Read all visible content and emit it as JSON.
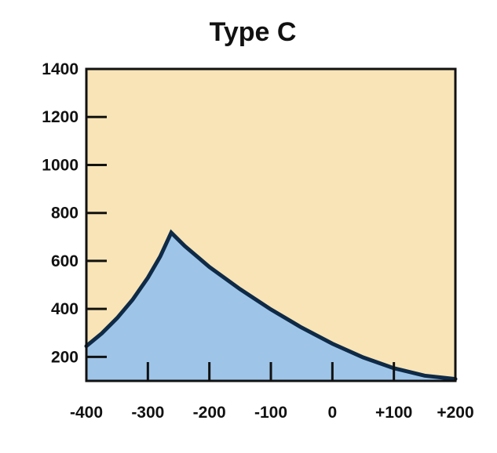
{
  "chart_data": {
    "type": "area",
    "title": "Type C",
    "xlabel": "",
    "ylabel": "",
    "xlim": [
      -400,
      200
    ],
    "ylim": [
      100,
      1400
    ],
    "x_ticks": [
      -400,
      -300,
      -200,
      -100,
      0,
      100,
      200
    ],
    "x_tick_labels": [
      "-400",
      "-300",
      "-200",
      "-100",
      "0",
      "+100",
      "+200"
    ],
    "y_ticks": [
      200,
      400,
      600,
      800,
      1000,
      1200,
      1400
    ],
    "y_tick_labels": [
      "200",
      "400",
      "600",
      "800",
      "1000",
      "1200",
      "1400"
    ],
    "grid": false,
    "legend": "none",
    "series": [
      {
        "x": [
          -400,
          -375,
          -350,
          -325,
          -300,
          -280,
          -262,
          -240,
          -200,
          -150,
          -100,
          -50,
          0,
          50,
          100,
          150,
          200
        ],
        "y": [
          245,
          298,
          362,
          438,
          530,
          618,
          718,
          662,
          575,
          482,
          398,
          322,
          255,
          198,
          153,
          122,
          108
        ]
      }
    ],
    "colors": {
      "background": "#f8e4b6",
      "area_fill": "#9ec5e8",
      "line": "#0e2a47",
      "frame": "#111111"
    }
  }
}
